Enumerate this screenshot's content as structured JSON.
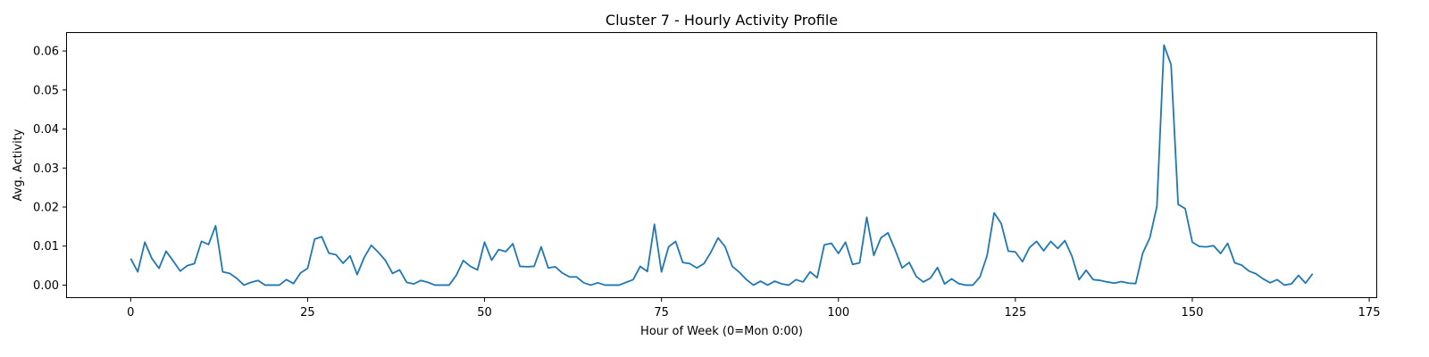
{
  "chart_data": {
    "type": "line",
    "title": "Cluster 7 - Hourly Activity Profile",
    "xlabel": "Hour of Week (0=Mon 0:00)",
    "ylabel": "Avg. Activity",
    "xlim": [
      -9,
      176
    ],
    "ylim": [
      -0.0031,
      0.0646
    ],
    "x_ticks": [
      0,
      25,
      50,
      75,
      100,
      125,
      150,
      175
    ],
    "x_tick_labels": [
      "0",
      "25",
      "50",
      "75",
      "100",
      "125",
      "150",
      "175"
    ],
    "y_ticks": [
      0.0,
      0.01,
      0.02,
      0.03,
      0.04,
      0.05,
      0.06
    ],
    "y_tick_labels": [
      "0.00",
      "0.01",
      "0.02",
      "0.03",
      "0.04",
      "0.05",
      "0.06"
    ],
    "grid": false,
    "line_color": "#1f77b4",
    "series": [
      {
        "name": "Cluster 7",
        "x": [
          0,
          1,
          2,
          3,
          4,
          5,
          6,
          7,
          8,
          9,
          10,
          11,
          12,
          13,
          14,
          15,
          16,
          17,
          18,
          19,
          20,
          21,
          22,
          23,
          24,
          25,
          26,
          27,
          28,
          29,
          30,
          31,
          32,
          33,
          34,
          35,
          36,
          37,
          38,
          39,
          40,
          41,
          42,
          43,
          44,
          45,
          46,
          47,
          48,
          49,
          50,
          51,
          52,
          53,
          54,
          55,
          56,
          57,
          58,
          59,
          60,
          61,
          62,
          63,
          64,
          65,
          66,
          67,
          68,
          69,
          70,
          71,
          72,
          73,
          74,
          75,
          76,
          77,
          78,
          79,
          80,
          81,
          82,
          83,
          84,
          85,
          86,
          87,
          88,
          89,
          90,
          91,
          92,
          93,
          94,
          95,
          96,
          97,
          98,
          99,
          100,
          101,
          102,
          103,
          104,
          105,
          106,
          107,
          108,
          109,
          110,
          111,
          112,
          113,
          114,
          115,
          116,
          117,
          118,
          119,
          120,
          121,
          122,
          123,
          124,
          125,
          126,
          127,
          128,
          129,
          130,
          131,
          132,
          133,
          134,
          135,
          136,
          137,
          138,
          139,
          140,
          141,
          142,
          143,
          144,
          145,
          146,
          147,
          148,
          149,
          150,
          151,
          152,
          153,
          154,
          155,
          156,
          157,
          158,
          159,
          160,
          161,
          162,
          163,
          164,
          165,
          166,
          167
        ],
        "values": [
          0.0068,
          0.0034,
          0.011,
          0.0068,
          0.0043,
          0.0087,
          0.0062,
          0.0036,
          0.005,
          0.0055,
          0.0112,
          0.0104,
          0.0152,
          0.0034,
          0.003,
          0.0017,
          0.0,
          0.0007,
          0.0012,
          0.0,
          0.0,
          0.0,
          0.0014,
          0.0004,
          0.0031,
          0.0043,
          0.0118,
          0.0124,
          0.0082,
          0.0078,
          0.0056,
          0.0075,
          0.0027,
          0.0071,
          0.0102,
          0.0084,
          0.0063,
          0.003,
          0.0039,
          0.0007,
          0.0003,
          0.0012,
          0.0007,
          0.0,
          0.0,
          0.0,
          0.0025,
          0.0063,
          0.0048,
          0.0039,
          0.011,
          0.0064,
          0.0091,
          0.0086,
          0.0106,
          0.0048,
          0.0047,
          0.0048,
          0.0098,
          0.0044,
          0.0047,
          0.0031,
          0.0021,
          0.0021,
          0.0006,
          0.0,
          0.0006,
          0.0,
          0.0,
          0.0,
          0.0007,
          0.0014,
          0.0048,
          0.0035,
          0.0156,
          0.0034,
          0.0098,
          0.0112,
          0.0058,
          0.0055,
          0.0044,
          0.0055,
          0.0085,
          0.0121,
          0.0098,
          0.0048,
          0.0033,
          0.0014,
          0.0,
          0.001,
          0.0,
          0.001,
          0.0003,
          0.0,
          0.0014,
          0.0008,
          0.0034,
          0.0019,
          0.0103,
          0.0107,
          0.0081,
          0.011,
          0.0053,
          0.0057,
          0.0174,
          0.0076,
          0.0121,
          0.0134,
          0.0091,
          0.0044,
          0.0058,
          0.0022,
          0.0008,
          0.0018,
          0.0045,
          0.0003,
          0.0016,
          0.0004,
          0.0,
          0.0,
          0.0021,
          0.0075,
          0.0185,
          0.0158,
          0.0087,
          0.0085,
          0.006,
          0.0096,
          0.0112,
          0.0088,
          0.0112,
          0.0094,
          0.0114,
          0.0074,
          0.0014,
          0.0038,
          0.0014,
          0.0012,
          0.0008,
          0.0005,
          0.0009,
          0.0005,
          0.0004,
          0.0082,
          0.0121,
          0.0202,
          0.0615,
          0.0565,
          0.0207,
          0.0196,
          0.011,
          0.0099,
          0.0098,
          0.0101,
          0.0081,
          0.0107,
          0.0057,
          0.0051,
          0.0036,
          0.0029,
          0.0016,
          0.0006,
          0.0014,
          0.0,
          0.0003,
          0.0025,
          0.0005,
          0.0029
        ]
      }
    ]
  }
}
